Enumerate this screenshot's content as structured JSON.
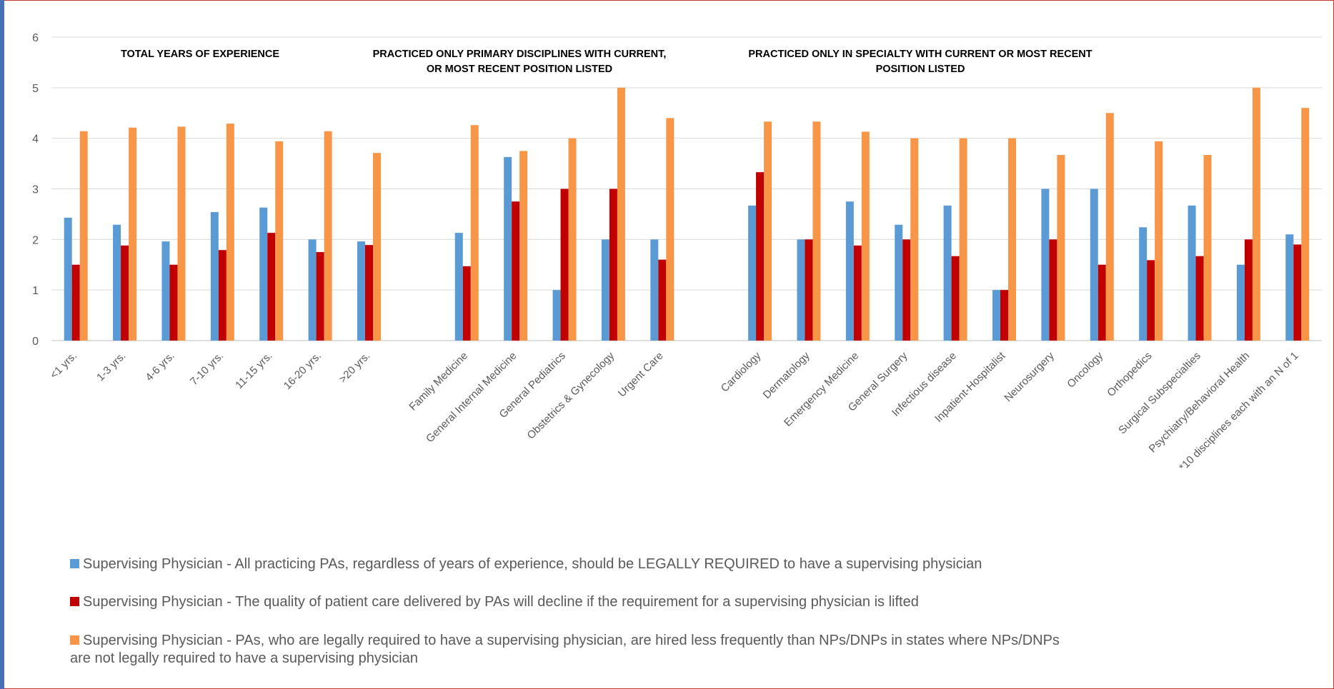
{
  "chart_data": {
    "type": "bar",
    "ylim": [
      0,
      6
    ],
    "yticks": [
      "0",
      "1",
      "2",
      "3",
      "4",
      "5",
      "6"
    ],
    "grid": true,
    "legend_position": "bottom",
    "section_titles": [
      [
        "TOTAL YEARS OF EXPERIENCE"
      ],
      [
        "PRACTICED ONLY PRIMARY DISCIPLINES WITH CURRENT,",
        "OR MOST RECENT POSITION LISTED"
      ],
      [
        "PRACTICED ONLY IN SPECIALTY WITH CURRENT OR MOST RECENT",
        "POSITION LISTED"
      ]
    ],
    "categories": [
      "<1 yrs.",
      "1-3 yrs.",
      "4-6 yrs.",
      "7-10 yrs.",
      "11-15 yrs.",
      "16-20 yrs.",
      ">20 yrs.",
      "",
      "Family Medicine",
      "General Internal Medicine",
      "General Pediatrics",
      "Obstetrics & Gynecology",
      "Urgent Care",
      "",
      "Cardiology",
      "Dermatology",
      "Emergency Medicine",
      "General Surgery",
      "Infectious disease",
      "Inpatient-Hospitalist",
      "Neurosurgery",
      "Oncology",
      "Orthopedics",
      "Surgical Subspecialties",
      "Psychiatry/Behavioral Health",
      "*10 disciplines each with an N of 1"
    ],
    "series": [
      {
        "name": "Supervising Physician - All practicing PAs, regardless of years of experience, should be LEGALLY REQUIRED to have a supervising physician",
        "color": "#5b9bd5",
        "values": [
          2.43,
          2.29,
          1.96,
          2.54,
          2.63,
          2.0,
          1.96,
          null,
          2.13,
          3.63,
          1.0,
          2.0,
          2.0,
          null,
          2.67,
          2.0,
          2.75,
          2.29,
          2.67,
          1.0,
          3.0,
          3.0,
          2.24,
          2.67,
          1.5,
          2.1
        ]
      },
      {
        "name": "Supervising Physician - The quality of patient care delivered by PAs will decline if the requirement for a supervising physician is lifted",
        "color": "#c00000",
        "values": [
          1.5,
          1.88,
          1.5,
          1.79,
          2.13,
          1.75,
          1.89,
          null,
          1.47,
          2.75,
          3.0,
          3.0,
          1.6,
          null,
          3.33,
          2.0,
          1.88,
          2.0,
          1.67,
          1.0,
          2.0,
          1.5,
          1.59,
          1.67,
          2.0,
          1.9
        ]
      },
      {
        "name": "Supervising Physician - PAs, who are legally required to have a supervising physician, are hired less frequently than NPs/DNPs in states where NPs/DNPs are not legally required to have a supervising physician",
        "color": "#f79646",
        "values": [
          4.14,
          4.21,
          4.23,
          4.29,
          3.94,
          4.14,
          3.71,
          null,
          4.26,
          3.75,
          4.0,
          5.0,
          4.4,
          null,
          4.33,
          4.33,
          4.13,
          4.0,
          4.0,
          4.0,
          3.67,
          4.5,
          3.94,
          3.67,
          5.0,
          4.6
        ]
      }
    ]
  }
}
